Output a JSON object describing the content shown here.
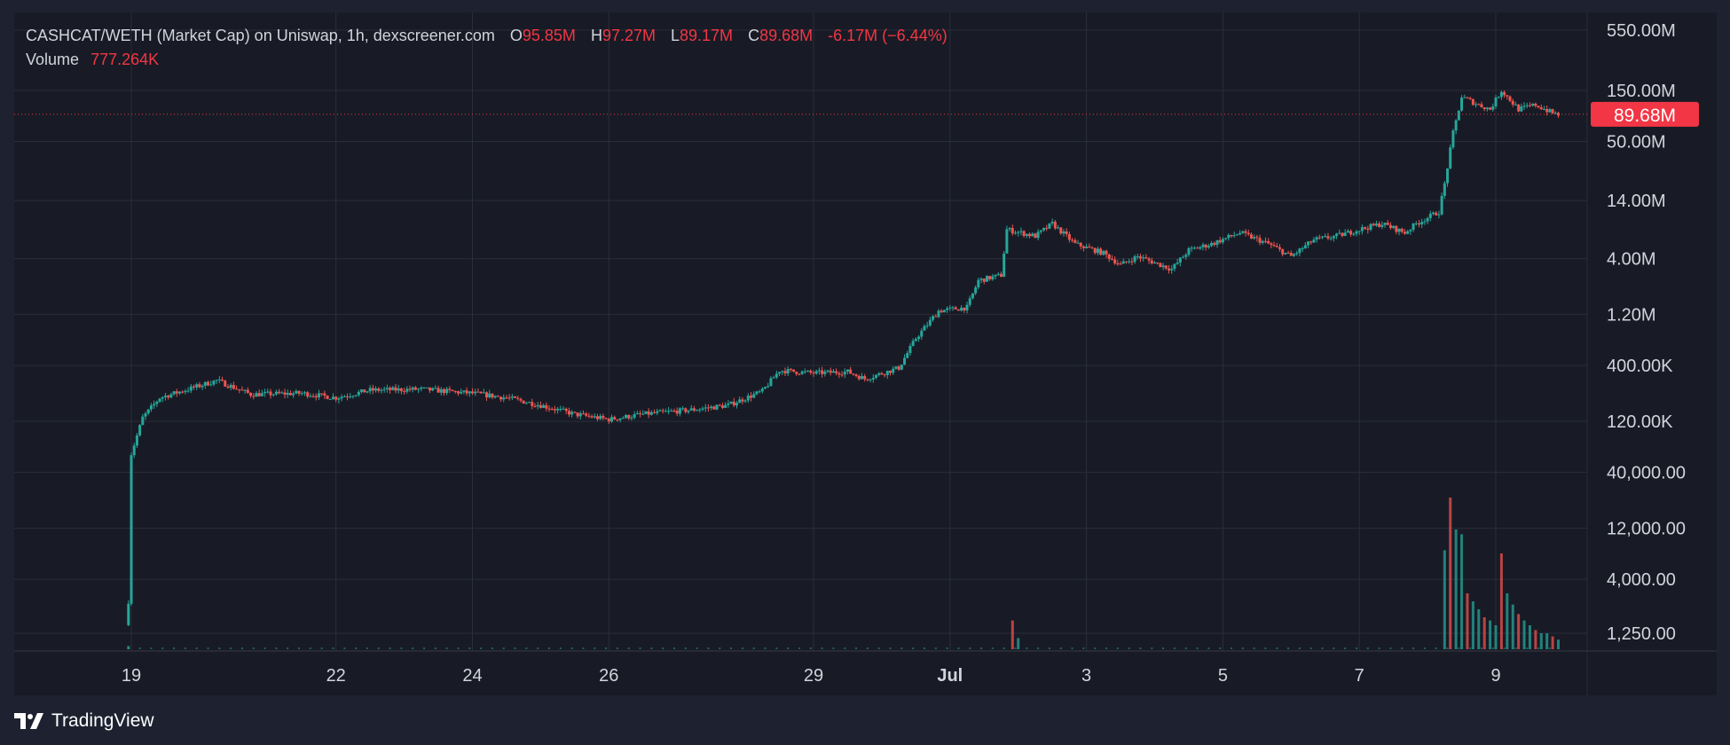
{
  "legend": {
    "pair": "CASHCAT/WETH (Market Cap) on Uniswap, 1h, dexscreener.com",
    "open_label": "O",
    "open": "95.85M",
    "high_label": "H",
    "high": "97.27M",
    "low_label": "L",
    "low": "89.17M",
    "close_label": "C",
    "close": "89.68M",
    "change": "-6.17M (−6.44%)",
    "volume_label": "Volume",
    "volume": "777.264K"
  },
  "branding": {
    "name": "TradingView",
    "logo_icon": "tradingview-logo-icon"
  },
  "colors": {
    "up": "#26a69a",
    "down": "#ef5350",
    "price_tag": "#f23645",
    "background": "#181b25",
    "grid": "#2a2e39",
    "text": "#d1d4dc"
  },
  "chart_data": {
    "type": "candlestick",
    "y_scale": "log",
    "price_axis_ticks": [
      "550.00M",
      "150.00M",
      "50.00M",
      "14.00M",
      "4.00M",
      "1.20M",
      "400.00K",
      "120.00K",
      "40,000.00",
      "12,000.00",
      "4,000.00",
      "1,250.00"
    ],
    "price_axis_values": [
      550000000,
      150000000,
      50000000,
      14000000,
      4000000,
      1200000,
      400000,
      120000,
      40000,
      12000,
      4000,
      1250
    ],
    "x_axis_ticks": [
      "19",
      "22",
      "24",
      "26",
      "29",
      "Jul",
      "3",
      "5",
      "7",
      "9"
    ],
    "x_axis_dates": [
      "06-19",
      "06-22",
      "06-24",
      "06-26",
      "06-29",
      "07-01",
      "07-03",
      "07-05",
      "07-07",
      "07-09"
    ],
    "last_price": 89680000,
    "last_price_label": "89.68M",
    "grid": true,
    "market_cap_path": [
      [
        "06-18 23:00",
        2500
      ],
      [
        "06-19 00:00",
        60000
      ],
      [
        "06-19 04:00",
        130000
      ],
      [
        "06-19 10:00",
        200000
      ],
      [
        "06-19 20:00",
        240000
      ],
      [
        "06-20 06:00",
        290000
      ],
      [
        "06-20 18:00",
        215000
      ],
      [
        "06-21 12:00",
        220000
      ],
      [
        "06-22 00:00",
        200000
      ],
      [
        "06-22 12:00",
        235000
      ],
      [
        "06-23 06:00",
        240000
      ],
      [
        "06-24 00:00",
        220000
      ],
      [
        "06-24 12:00",
        200000
      ],
      [
        "06-25 00:00",
        170000
      ],
      [
        "06-25 12:00",
        140000
      ],
      [
        "06-26 00:00",
        125000
      ],
      [
        "06-26 12:00",
        140000
      ],
      [
        "06-27 06:00",
        155000
      ],
      [
        "06-27 18:00",
        170000
      ],
      [
        "06-28 06:00",
        230000
      ],
      [
        "06-28 12:00",
        360000
      ],
      [
        "06-29 00:00",
        340000
      ],
      [
        "06-29 12:00",
        350000
      ],
      [
        "06-29 18:00",
        300000
      ],
      [
        "06-30 06:00",
        380000
      ],
      [
        "06-30 12:00",
        720000
      ],
      [
        "06-30 20:00",
        1300000
      ],
      [
        "07-01 06:00",
        1400000
      ],
      [
        "07-01 10:00",
        2500000
      ],
      [
        "07-01 18:00",
        2800000
      ],
      [
        "07-01 20:00",
        7500000
      ],
      [
        "07-02 06:00",
        6500000
      ],
      [
        "07-02 12:00",
        8500000
      ],
      [
        "07-02 20:00",
        5500000
      ],
      [
        "07-03 06:00",
        4500000
      ],
      [
        "07-03 12:00",
        3500000
      ],
      [
        "07-03 18:00",
        4200000
      ],
      [
        "07-04 06:00",
        3200000
      ],
      [
        "07-04 12:00",
        4800000
      ],
      [
        "07-04 20:00",
        5500000
      ],
      [
        "07-05 06:00",
        7000000
      ],
      [
        "07-05 16:00",
        5500000
      ],
      [
        "07-06 00:00",
        4200000
      ],
      [
        "07-06 08:00",
        6000000
      ],
      [
        "07-06 16:00",
        6500000
      ],
      [
        "07-07 00:00",
        7500000
      ],
      [
        "07-07 08:00",
        8500000
      ],
      [
        "07-07 16:00",
        7000000
      ],
      [
        "07-07 20:00",
        8500000
      ],
      [
        "07-08 04:00",
        11000000
      ],
      [
        "07-08 06:00",
        20000000
      ],
      [
        "07-08 09:00",
        60000000
      ],
      [
        "07-08 12:00",
        130000000
      ],
      [
        "07-08 18:00",
        110000000
      ],
      [
        "07-08 22:00",
        100000000
      ],
      [
        "07-09 02:00",
        150000000
      ],
      [
        "07-09 08:00",
        100000000
      ],
      [
        "07-09 14:00",
        110000000
      ],
      [
        "07-09 20:00",
        92000000
      ],
      [
        "07-09 22:00",
        89680000
      ]
    ],
    "volume_bars": [
      [
        "06-18 23:00",
        0.02
      ],
      [
        "07-01 22:00",
        0.18
      ],
      [
        "07-02 00:00",
        0.07
      ],
      [
        "07-08 06:00",
        0.62
      ],
      [
        "07-08 08:00",
        0.95
      ],
      [
        "07-08 10:00",
        0.75
      ],
      [
        "07-08 12:00",
        0.72
      ],
      [
        "07-08 14:00",
        0.35
      ],
      [
        "07-08 16:00",
        0.3
      ],
      [
        "07-08 18:00",
        0.25
      ],
      [
        "07-08 20:00",
        0.2
      ],
      [
        "07-08 22:00",
        0.18
      ],
      [
        "07-09 00:00",
        0.15
      ],
      [
        "07-09 02:00",
        0.6
      ],
      [
        "07-09 04:00",
        0.35
      ],
      [
        "07-09 06:00",
        0.28
      ],
      [
        "07-09 08:00",
        0.22
      ],
      [
        "07-09 10:00",
        0.18
      ],
      [
        "07-09 12:00",
        0.15
      ],
      [
        "07-09 14:00",
        0.12
      ],
      [
        "07-09 16:00",
        0.1
      ],
      [
        "07-09 18:00",
        0.1
      ],
      [
        "07-09 20:00",
        0.08
      ],
      [
        "07-09 22:00",
        0.06
      ]
    ]
  }
}
